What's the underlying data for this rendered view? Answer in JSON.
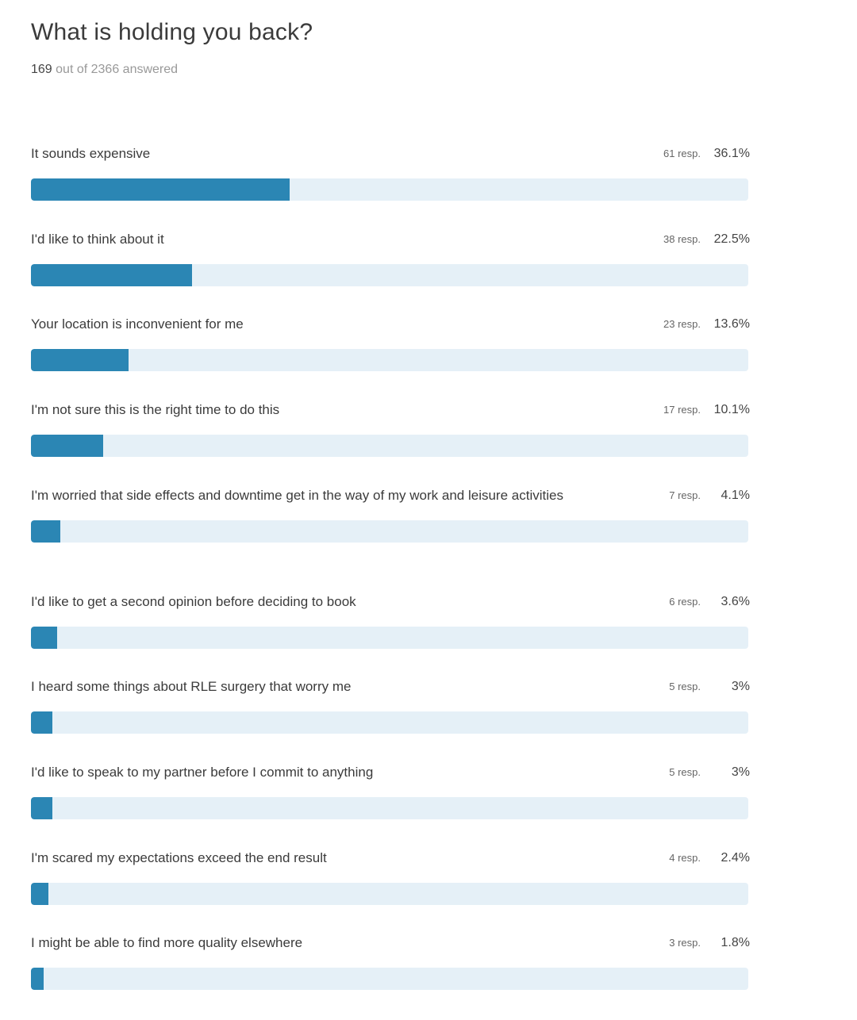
{
  "survey": {
    "question": "What is holding you back?",
    "answered_count": "169",
    "answered_rest": "out of 2366 answered"
  },
  "colors": {
    "bar_fill": "#2b86b4",
    "bar_track": "#e5f0f7"
  },
  "results": [
    {
      "label": "It sounds expensive",
      "responses": "61 resp.",
      "percent": "36.1%",
      "fraction": 0.361
    },
    {
      "label": "I'd like to think about it",
      "responses": "38 resp.",
      "percent": "22.5%",
      "fraction": 0.225
    },
    {
      "label": "Your location is inconvenient for me",
      "responses": "23 resp.",
      "percent": "13.6%",
      "fraction": 0.136
    },
    {
      "label": "I'm not sure this is the right time to do this",
      "responses": "17 resp.",
      "percent": "10.1%",
      "fraction": 0.101
    },
    {
      "label": "I'm worried that side effects and downtime get in the way of my work and leisure activities",
      "responses": "7 resp.",
      "percent": "4.1%",
      "fraction": 0.041
    },
    {
      "label": "I'd like to get a second opinion before deciding to book",
      "responses": "6 resp.",
      "percent": "3.6%",
      "fraction": 0.036
    },
    {
      "label": "I heard some things about RLE surgery that worry me",
      "responses": "5 resp.",
      "percent": "3%",
      "fraction": 0.03
    },
    {
      "label": "I'd like to speak to my partner before I commit to anything",
      "responses": "5 resp.",
      "percent": "3%",
      "fraction": 0.03
    },
    {
      "label": "I'm scared my expectations exceed the end result",
      "responses": "4 resp.",
      "percent": "2.4%",
      "fraction": 0.024
    },
    {
      "label": "I might be able to find more quality elsewhere",
      "responses": "3 resp.",
      "percent": "1.8%",
      "fraction": 0.018
    }
  ]
}
